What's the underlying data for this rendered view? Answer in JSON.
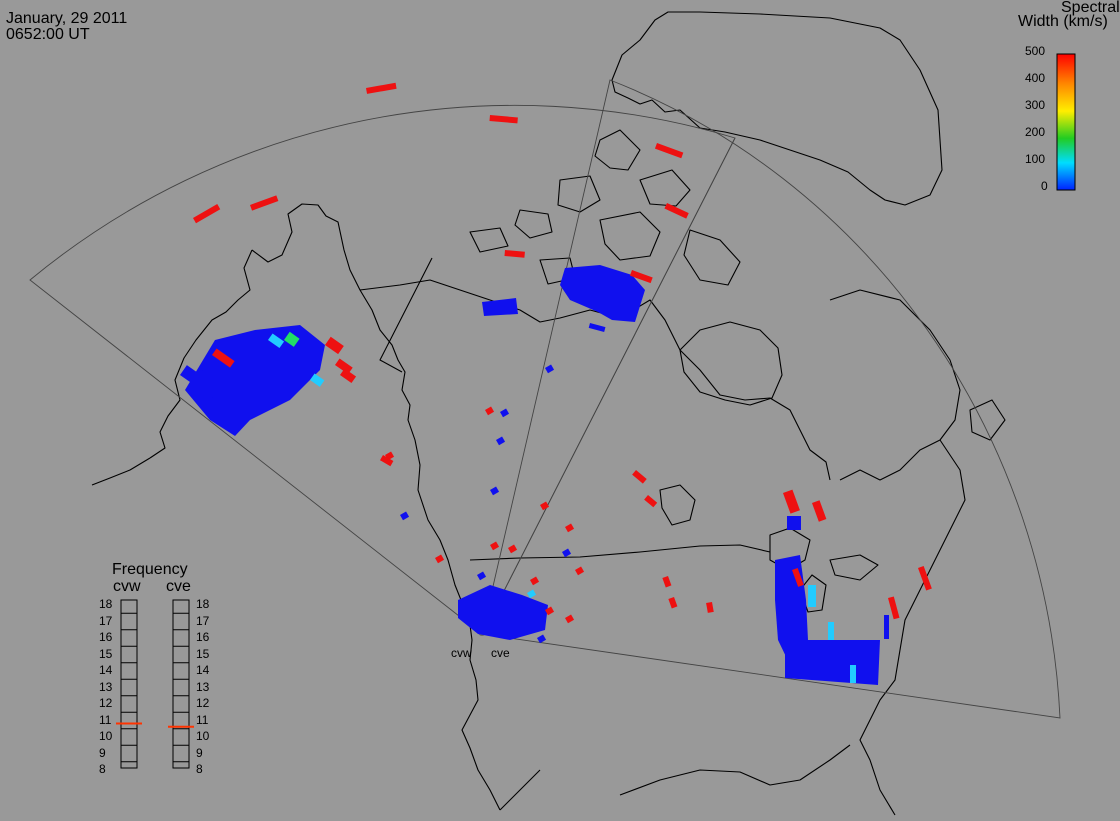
{
  "header": {
    "date": "January, 29 2011",
    "time": "0652:00 UT"
  },
  "colorbar": {
    "title_line1": "Spectral",
    "title_line2": "Width (km/s)",
    "ticks": [
      "500",
      "400",
      "300",
      "200",
      "100",
      "0"
    ],
    "colors": [
      "#ff0000",
      "#ff8800",
      "#ffee00",
      "#22cc22",
      "#00ddff",
      "#0022ff"
    ]
  },
  "frequency_panel": {
    "title": "Frequency",
    "left_radar": "cvw",
    "right_radar": "cve",
    "scale": [
      "18",
      "17",
      "16",
      "15",
      "14",
      "13",
      "12",
      "11",
      "10",
      "9",
      "8"
    ],
    "cvw_mhz": 10.7,
    "cve_mhz": 10.5,
    "marker_color": "#ff3300"
  },
  "radar_site_labels": {
    "west": "cvw",
    "east": "cve"
  },
  "colors": {
    "background": "#999999",
    "coastline": "#000000",
    "fov": "#444444",
    "echo_low": "#1010ee",
    "echo_cyan": "#22ccff",
    "echo_green": "#22dd66",
    "echo_high": "#ee1111"
  }
}
